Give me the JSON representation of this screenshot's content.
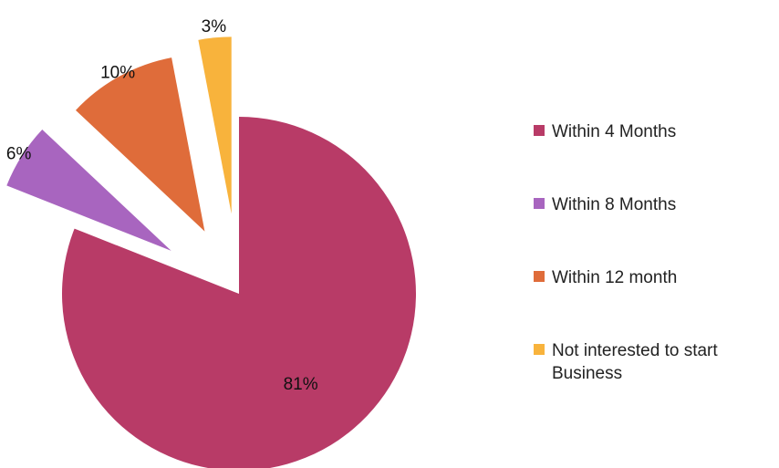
{
  "chart_data": {
    "type": "pie",
    "title": "",
    "legend_position": "right",
    "slices": [
      {
        "name": "Within 4 Months",
        "value": 81,
        "label": "81%",
        "color": "#B83B67",
        "exploded": false
      },
      {
        "name": "Within 8 Months",
        "value": 6,
        "label": "6%",
        "color": "#A865BF",
        "exploded": true
      },
      {
        "name": "Within 12 month",
        "value": 10,
        "label": "10%",
        "color": "#DF6C3A",
        "exploded": true
      },
      {
        "name": "Not interested to start Business",
        "value": 3,
        "label": "3%",
        "color": "#F8B33C",
        "exploded": true
      }
    ]
  },
  "legend": {
    "items": [
      {
        "label": "Within 4 Months",
        "color": "#B83B67"
      },
      {
        "label": "Within 8 Months",
        "color": "#A865BF"
      },
      {
        "label": "Within 12 month",
        "color": "#DF6C3A"
      },
      {
        "label": "Not interested to start Business",
        "color": "#F8B33C"
      }
    ]
  }
}
